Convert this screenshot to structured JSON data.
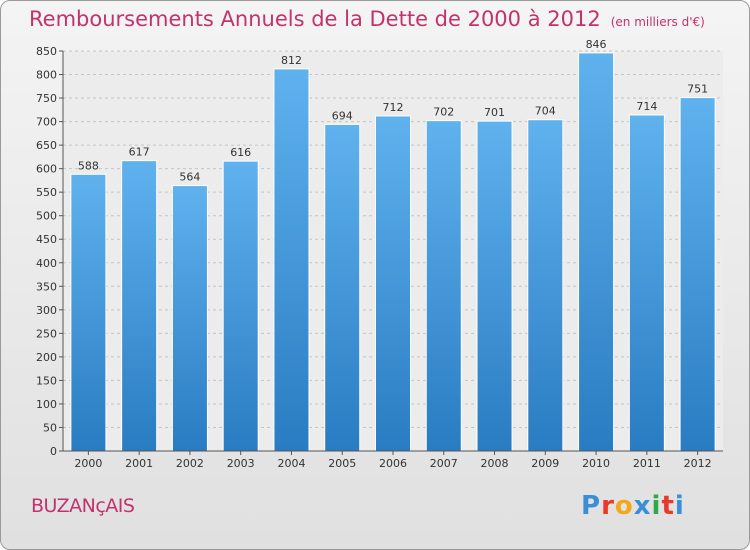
{
  "title": "Remboursements Annuels de la Dette de 2000 à 2012",
  "unit": "(en milliers d'€)",
  "city": "BUZANçAIS",
  "brand": {
    "letters": [
      "P",
      "r",
      "o",
      "x",
      "i",
      "t",
      "i"
    ],
    "colors": [
      "#3a8fd6",
      "#e8392b",
      "#f3a81c",
      "#3a8fd6",
      "#2ea84a",
      "#e8392b",
      "#3a8fd6"
    ]
  },
  "chart_data": {
    "type": "bar",
    "categories": [
      "2000",
      "2001",
      "2002",
      "2003",
      "2004",
      "2005",
      "2006",
      "2007",
      "2008",
      "2009",
      "2010",
      "2011",
      "2012"
    ],
    "values": [
      588,
      617,
      564,
      616,
      812,
      694,
      712,
      702,
      701,
      704,
      846,
      714,
      751
    ],
    "ylim": [
      0,
      850
    ],
    "yticks": [
      0,
      50,
      100,
      150,
      200,
      250,
      300,
      350,
      400,
      450,
      500,
      550,
      600,
      650,
      700,
      750,
      800,
      850
    ],
    "grid": true,
    "bar_color": "#4a9ee0"
  }
}
